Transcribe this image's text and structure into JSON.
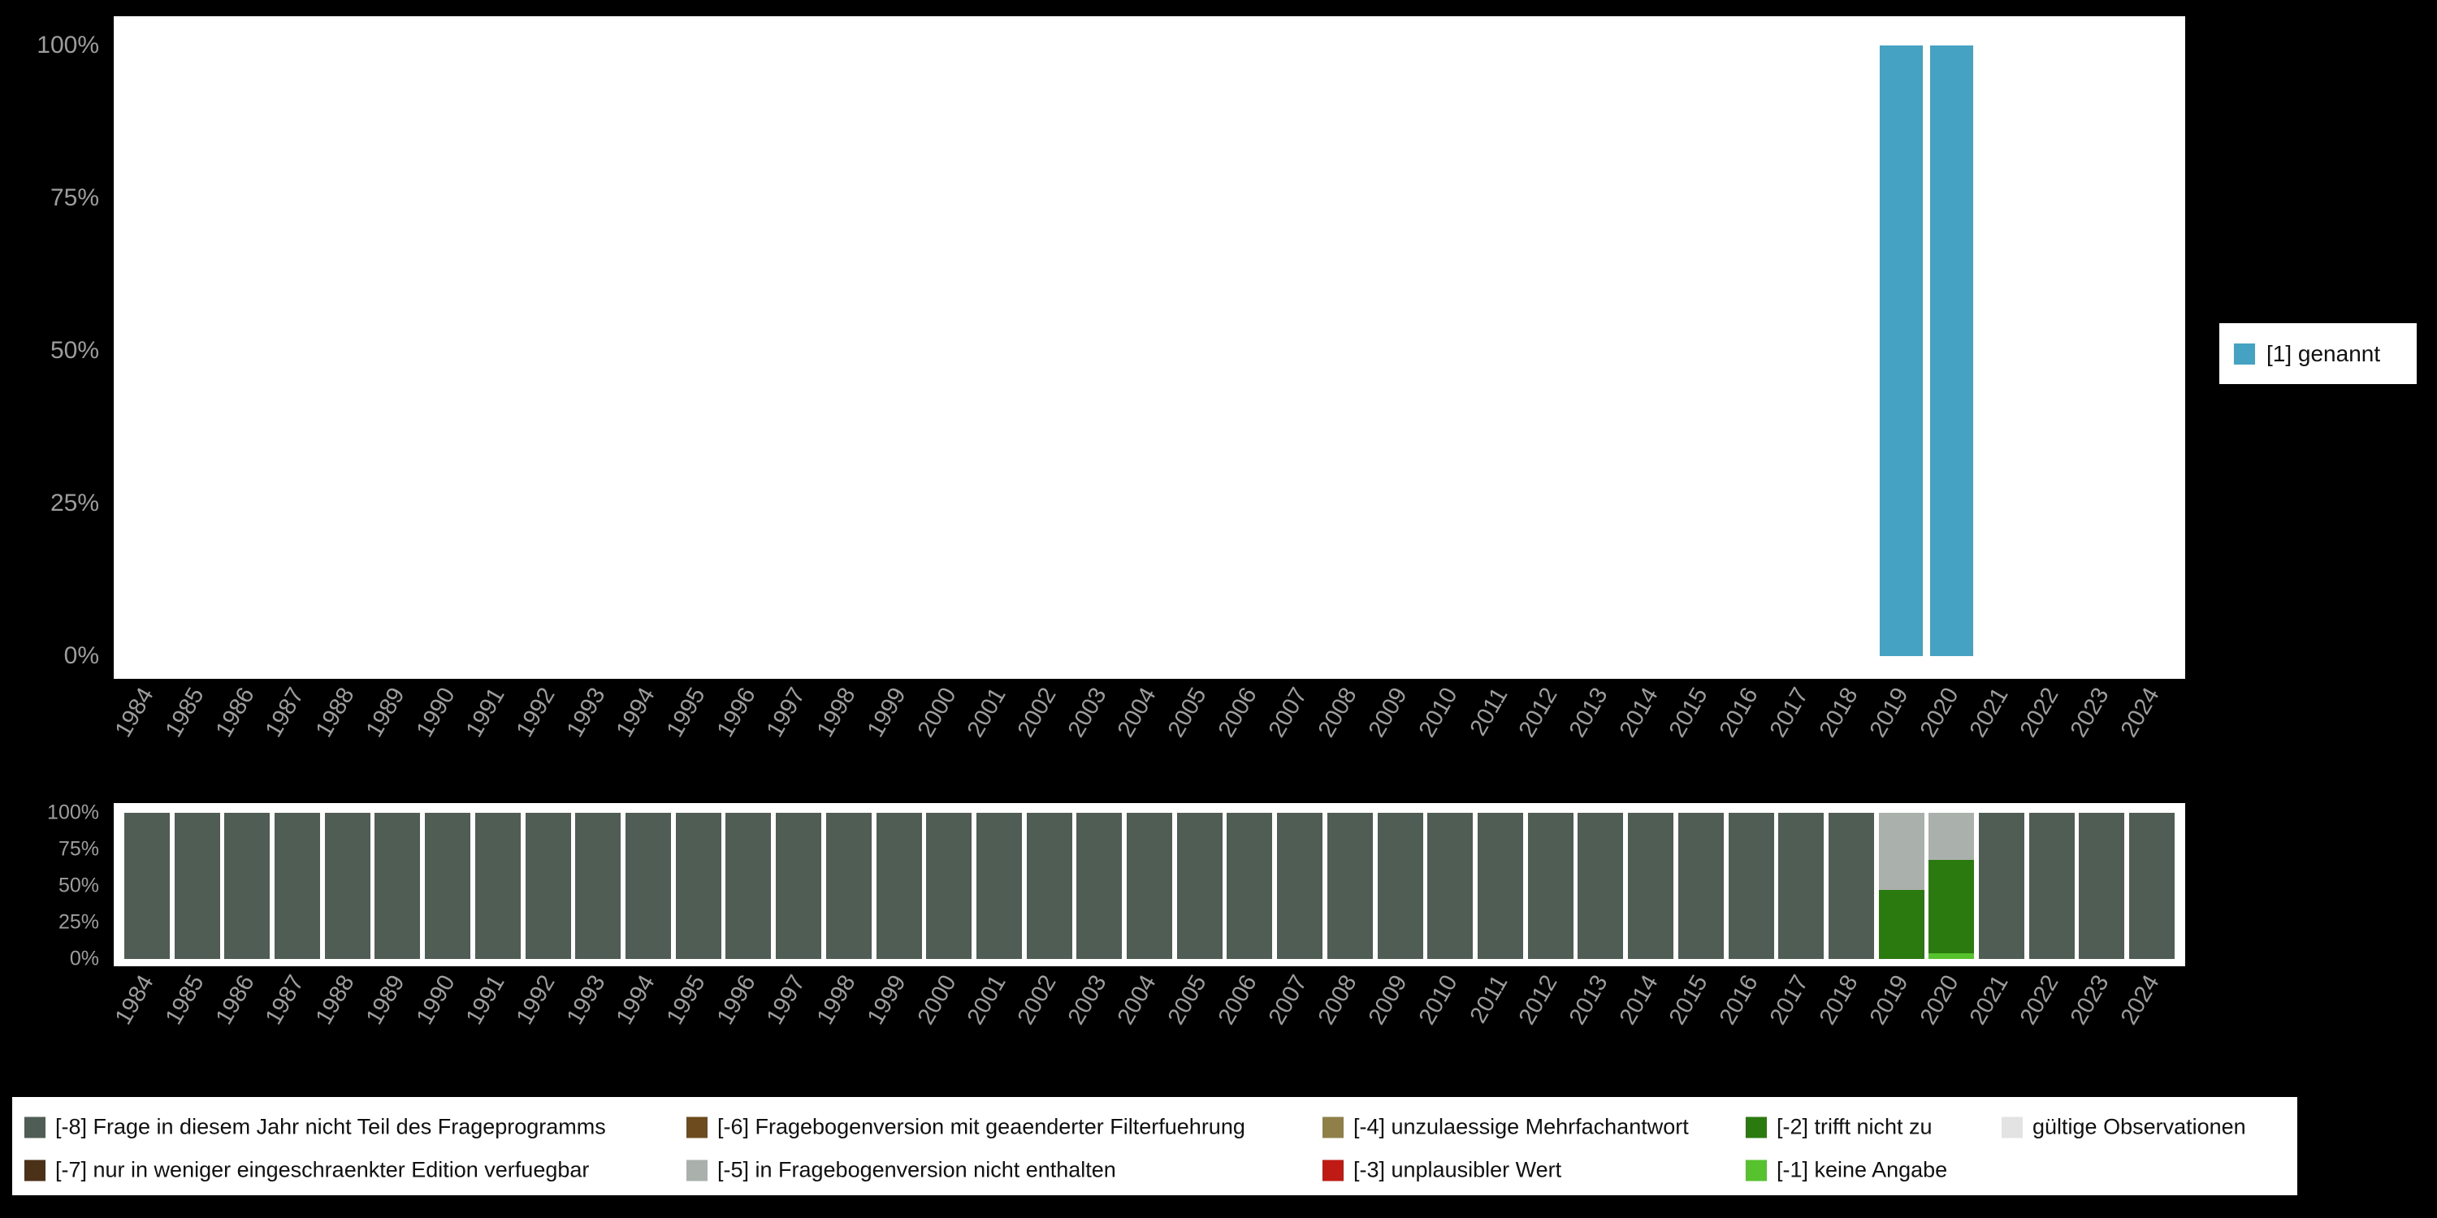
{
  "colors": {
    "background": "#000000",
    "panel": "#ffffff",
    "axis_text": "#9d9d9d",
    "legend_text": "#111111",
    "genannt": "#45a2c2",
    "m8": "#4f5d54",
    "m7": "#4a3118",
    "m6": "#6e4a1f",
    "m5": "#aab0ab",
    "m4": "#8f8049",
    "m3": "#bf1b14",
    "m2": "#2a7a10",
    "m1": "#55c22e",
    "valid": "#e3e3e3"
  },
  "chart_data": [
    {
      "type": "bar",
      "title": "",
      "xlabel": "",
      "ylabel": "",
      "ylim": [
        0,
        100
      ],
      "grid": false,
      "legend_position": "right",
      "categories": [
        1984,
        1985,
        1986,
        1987,
        1988,
        1989,
        1990,
        1991,
        1992,
        1993,
        1994,
        1995,
        1996,
        1997,
        1998,
        1999,
        2000,
        2001,
        2002,
        2003,
        2004,
        2005,
        2006,
        2007,
        2008,
        2009,
        2010,
        2011,
        2012,
        2013,
        2014,
        2015,
        2016,
        2017,
        2018,
        2019,
        2020,
        2021,
        2022,
        2023,
        2024
      ],
      "yticks": [
        {
          "label": "0%",
          "value": 0
        },
        {
          "label": "25%",
          "value": 25
        },
        {
          "label": "50%",
          "value": 50
        },
        {
          "label": "75%",
          "value": 75
        },
        {
          "label": "100%",
          "value": 100
        }
      ],
      "series": [
        {
          "name": "[1] genannt",
          "color_key": "genannt",
          "values": [
            0,
            0,
            0,
            0,
            0,
            0,
            0,
            0,
            0,
            0,
            0,
            0,
            0,
            0,
            0,
            0,
            0,
            0,
            0,
            0,
            0,
            0,
            0,
            0,
            0,
            0,
            0,
            0,
            0,
            0,
            0,
            0,
            0,
            0,
            0,
            100,
            100,
            0,
            0,
            0,
            0
          ]
        }
      ],
      "legend": [
        {
          "label": "[1] genannt",
          "color_key": "genannt"
        }
      ]
    },
    {
      "type": "stacked-bar",
      "title": "",
      "xlabel": "",
      "ylabel": "",
      "ylim": [
        0,
        100
      ],
      "grid": false,
      "legend_position": "bottom",
      "categories": [
        1984,
        1985,
        1986,
        1987,
        1988,
        1989,
        1990,
        1991,
        1992,
        1993,
        1994,
        1995,
        1996,
        1997,
        1998,
        1999,
        2000,
        2001,
        2002,
        2003,
        2004,
        2005,
        2006,
        2007,
        2008,
        2009,
        2010,
        2011,
        2012,
        2013,
        2014,
        2015,
        2016,
        2017,
        2018,
        2019,
        2020,
        2021,
        2022,
        2023,
        2024
      ],
      "yticks": [
        {
          "label": "0%",
          "value": 0
        },
        {
          "label": "25%",
          "value": 25
        },
        {
          "label": "50%",
          "value": 50
        },
        {
          "label": "75%",
          "value": 75
        },
        {
          "label": "100%",
          "value": 100
        }
      ],
      "series": [
        {
          "name": "[-8] Frage in diesem Jahr nicht Teil des Frageprogramms",
          "color_key": "m8",
          "values": [
            100,
            100,
            100,
            100,
            100,
            100,
            100,
            100,
            100,
            100,
            100,
            100,
            100,
            100,
            100,
            100,
            100,
            100,
            100,
            100,
            100,
            100,
            100,
            100,
            100,
            100,
            100,
            100,
            100,
            100,
            100,
            100,
            100,
            100,
            100,
            0,
            0,
            100,
            100,
            100,
            100
          ]
        },
        {
          "name": "[-1] keine Angabe",
          "color_key": "m1",
          "values": [
            0,
            0,
            0,
            0,
            0,
            0,
            0,
            0,
            0,
            0,
            0,
            0,
            0,
            0,
            0,
            0,
            0,
            0,
            0,
            0,
            0,
            0,
            0,
            0,
            0,
            0,
            0,
            0,
            0,
            0,
            0,
            0,
            0,
            0,
            0,
            0,
            4,
            0,
            0,
            0,
            0
          ]
        },
        {
          "name": "[-2] trifft nicht zu",
          "color_key": "m2",
          "values": [
            0,
            0,
            0,
            0,
            0,
            0,
            0,
            0,
            0,
            0,
            0,
            0,
            0,
            0,
            0,
            0,
            0,
            0,
            0,
            0,
            0,
            0,
            0,
            0,
            0,
            0,
            0,
            0,
            0,
            0,
            0,
            0,
            0,
            0,
            0,
            47,
            64,
            0,
            0,
            0,
            0
          ]
        },
        {
          "name": "[-5] in Fragebogenversion nicht enthalten",
          "color_key": "m5",
          "values": [
            0,
            0,
            0,
            0,
            0,
            0,
            0,
            0,
            0,
            0,
            0,
            0,
            0,
            0,
            0,
            0,
            0,
            0,
            0,
            0,
            0,
            0,
            0,
            0,
            0,
            0,
            0,
            0,
            0,
            0,
            0,
            0,
            0,
            0,
            0,
            53,
            32,
            0,
            0,
            0,
            0
          ]
        }
      ]
    }
  ],
  "legend_bottom": {
    "items": [
      {
        "label": "[-8] Frage in diesem Jahr nicht Teil des Frageprogramms",
        "color_key": "m8",
        "row": 0,
        "col": 0
      },
      {
        "label": "[-7] nur in weniger eingeschraenkter Edition verfuegbar",
        "color_key": "m7",
        "row": 1,
        "col": 0
      },
      {
        "label": "[-6] Fragebogenversion mit geaenderter Filterfuehrung",
        "color_key": "m6",
        "row": 0,
        "col": 1
      },
      {
        "label": "[-5] in Fragebogenversion nicht enthalten",
        "color_key": "m5",
        "row": 1,
        "col": 1
      },
      {
        "label": "[-4] unzulaessige Mehrfachantwort",
        "color_key": "m4",
        "row": 0,
        "col": 2
      },
      {
        "label": "[-3] unplausibler Wert",
        "color_key": "m3",
        "row": 1,
        "col": 2
      },
      {
        "label": "[-2] trifft nicht zu",
        "color_key": "m2",
        "row": 0,
        "col": 3
      },
      {
        "label": "[-1] keine Angabe",
        "color_key": "m1",
        "row": 1,
        "col": 3
      },
      {
        "label": "gültige Observationen",
        "color_key": "valid",
        "row": 0,
        "col": 4
      }
    ]
  }
}
